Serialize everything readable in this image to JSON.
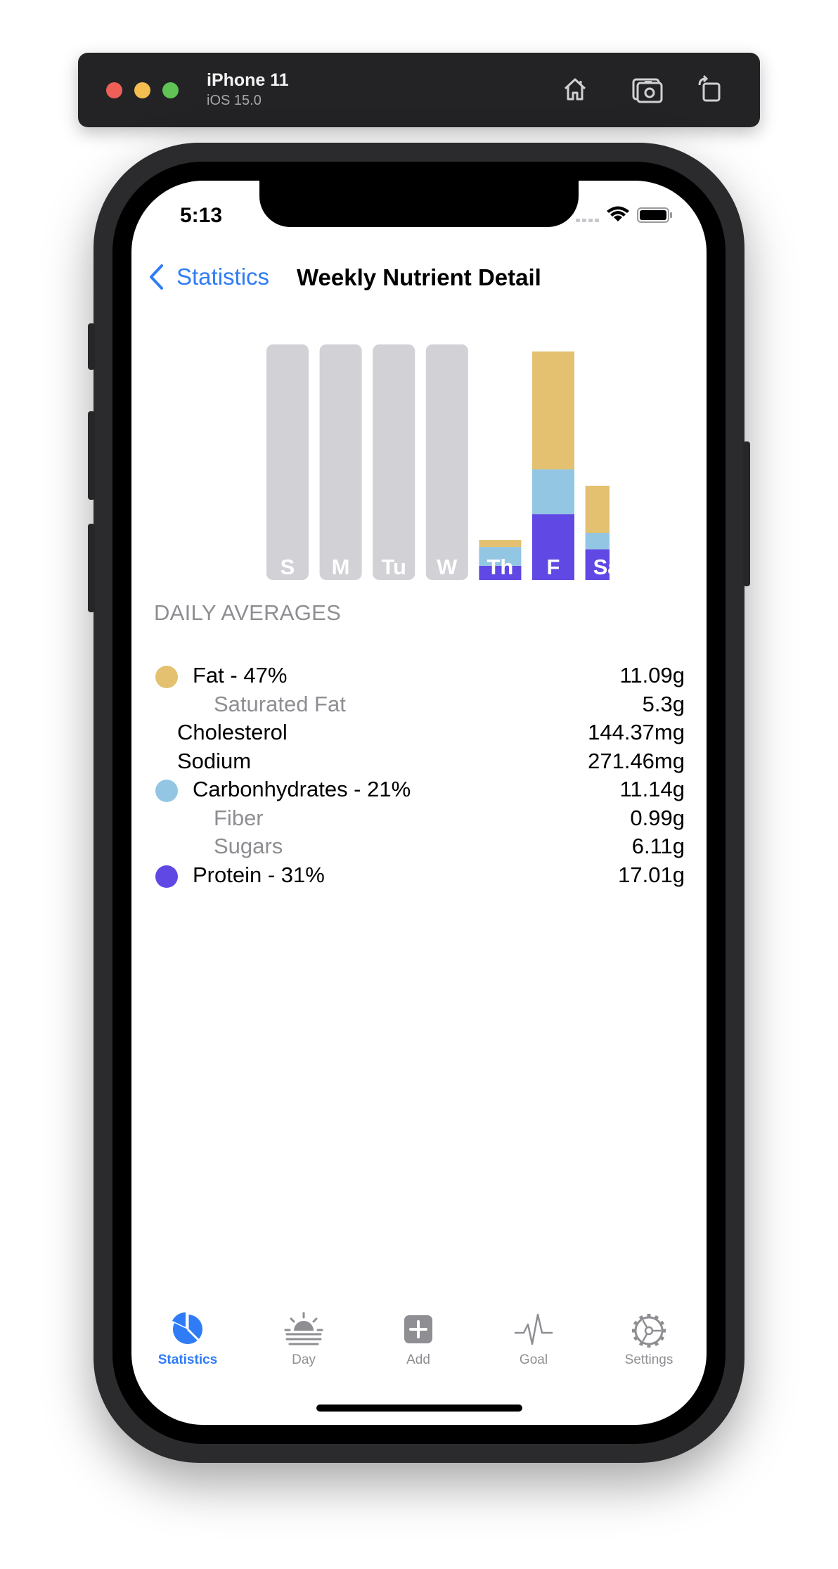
{
  "simulator": {
    "device_name": "iPhone 11",
    "os_version": "iOS 15.0",
    "icons": [
      "home-icon",
      "screenshot-icon",
      "rotate-icon"
    ]
  },
  "status_bar": {
    "time": "5:13"
  },
  "nav": {
    "back_label": "Statistics",
    "title": "Weekly Nutrient Detail"
  },
  "colors": {
    "fat": "#e3c170",
    "carbs": "#93c6e3",
    "protein": "#6048e4",
    "empty": "#d1d1d6",
    "accent": "#2f7cf6"
  },
  "chart_data": {
    "type": "bar",
    "stacked": true,
    "categories": [
      "S",
      "M",
      "Tu",
      "W",
      "Th",
      "F",
      "Sa"
    ],
    "series": [
      {
        "name": "Protein",
        "values": [
          0,
          0,
          0,
          0,
          6,
          28,
          13
        ]
      },
      {
        "name": "Carbohydrates",
        "values": [
          0,
          0,
          0,
          0,
          8,
          19,
          7
        ]
      },
      {
        "name": "Fat",
        "values": [
          0,
          0,
          0,
          0,
          3,
          50,
          20
        ]
      }
    ],
    "has_data": [
      false,
      false,
      false,
      false,
      true,
      true,
      true
    ],
    "ylim": [
      0,
      100
    ],
    "title": "",
    "xlabel": "",
    "ylabel": ""
  },
  "daily_averages": {
    "header": "DAILY AVERAGES",
    "rows": [
      {
        "label": "Fat - 47%",
        "value": "11.09g",
        "style": "primary",
        "dot": "fat",
        "indent": 1
      },
      {
        "label": "Saturated Fat",
        "value": "5.3g",
        "style": "secondary",
        "dot": null,
        "indent": 2
      },
      {
        "label": "Cholesterol",
        "value": "144.37mg",
        "style": "primary",
        "dot": null,
        "indent": 0
      },
      {
        "label": "Sodium",
        "value": "271.46mg",
        "style": "primary",
        "dot": null,
        "indent": 0
      },
      {
        "label": "Carbonhydrates - 21%",
        "value": "11.14g",
        "style": "primary",
        "dot": "carbs",
        "indent": 1
      },
      {
        "label": "Fiber",
        "value": "0.99g",
        "style": "secondary",
        "dot": null,
        "indent": 2
      },
      {
        "label": "Sugars",
        "value": "6.11g",
        "style": "secondary",
        "dot": null,
        "indent": 2
      },
      {
        "label": "Protein - 31%",
        "value": "17.01g",
        "style": "primary",
        "dot": "protein",
        "indent": 1
      }
    ]
  },
  "tabs": [
    {
      "label": "Statistics",
      "icon": "pie-chart-icon",
      "active": true
    },
    {
      "label": "Day",
      "icon": "sunrise-icon",
      "active": false
    },
    {
      "label": "Add",
      "icon": "plus-square-icon",
      "active": false
    },
    {
      "label": "Goal",
      "icon": "waveform-icon",
      "active": false
    },
    {
      "label": "Settings",
      "icon": "gear-icon",
      "active": false
    }
  ]
}
